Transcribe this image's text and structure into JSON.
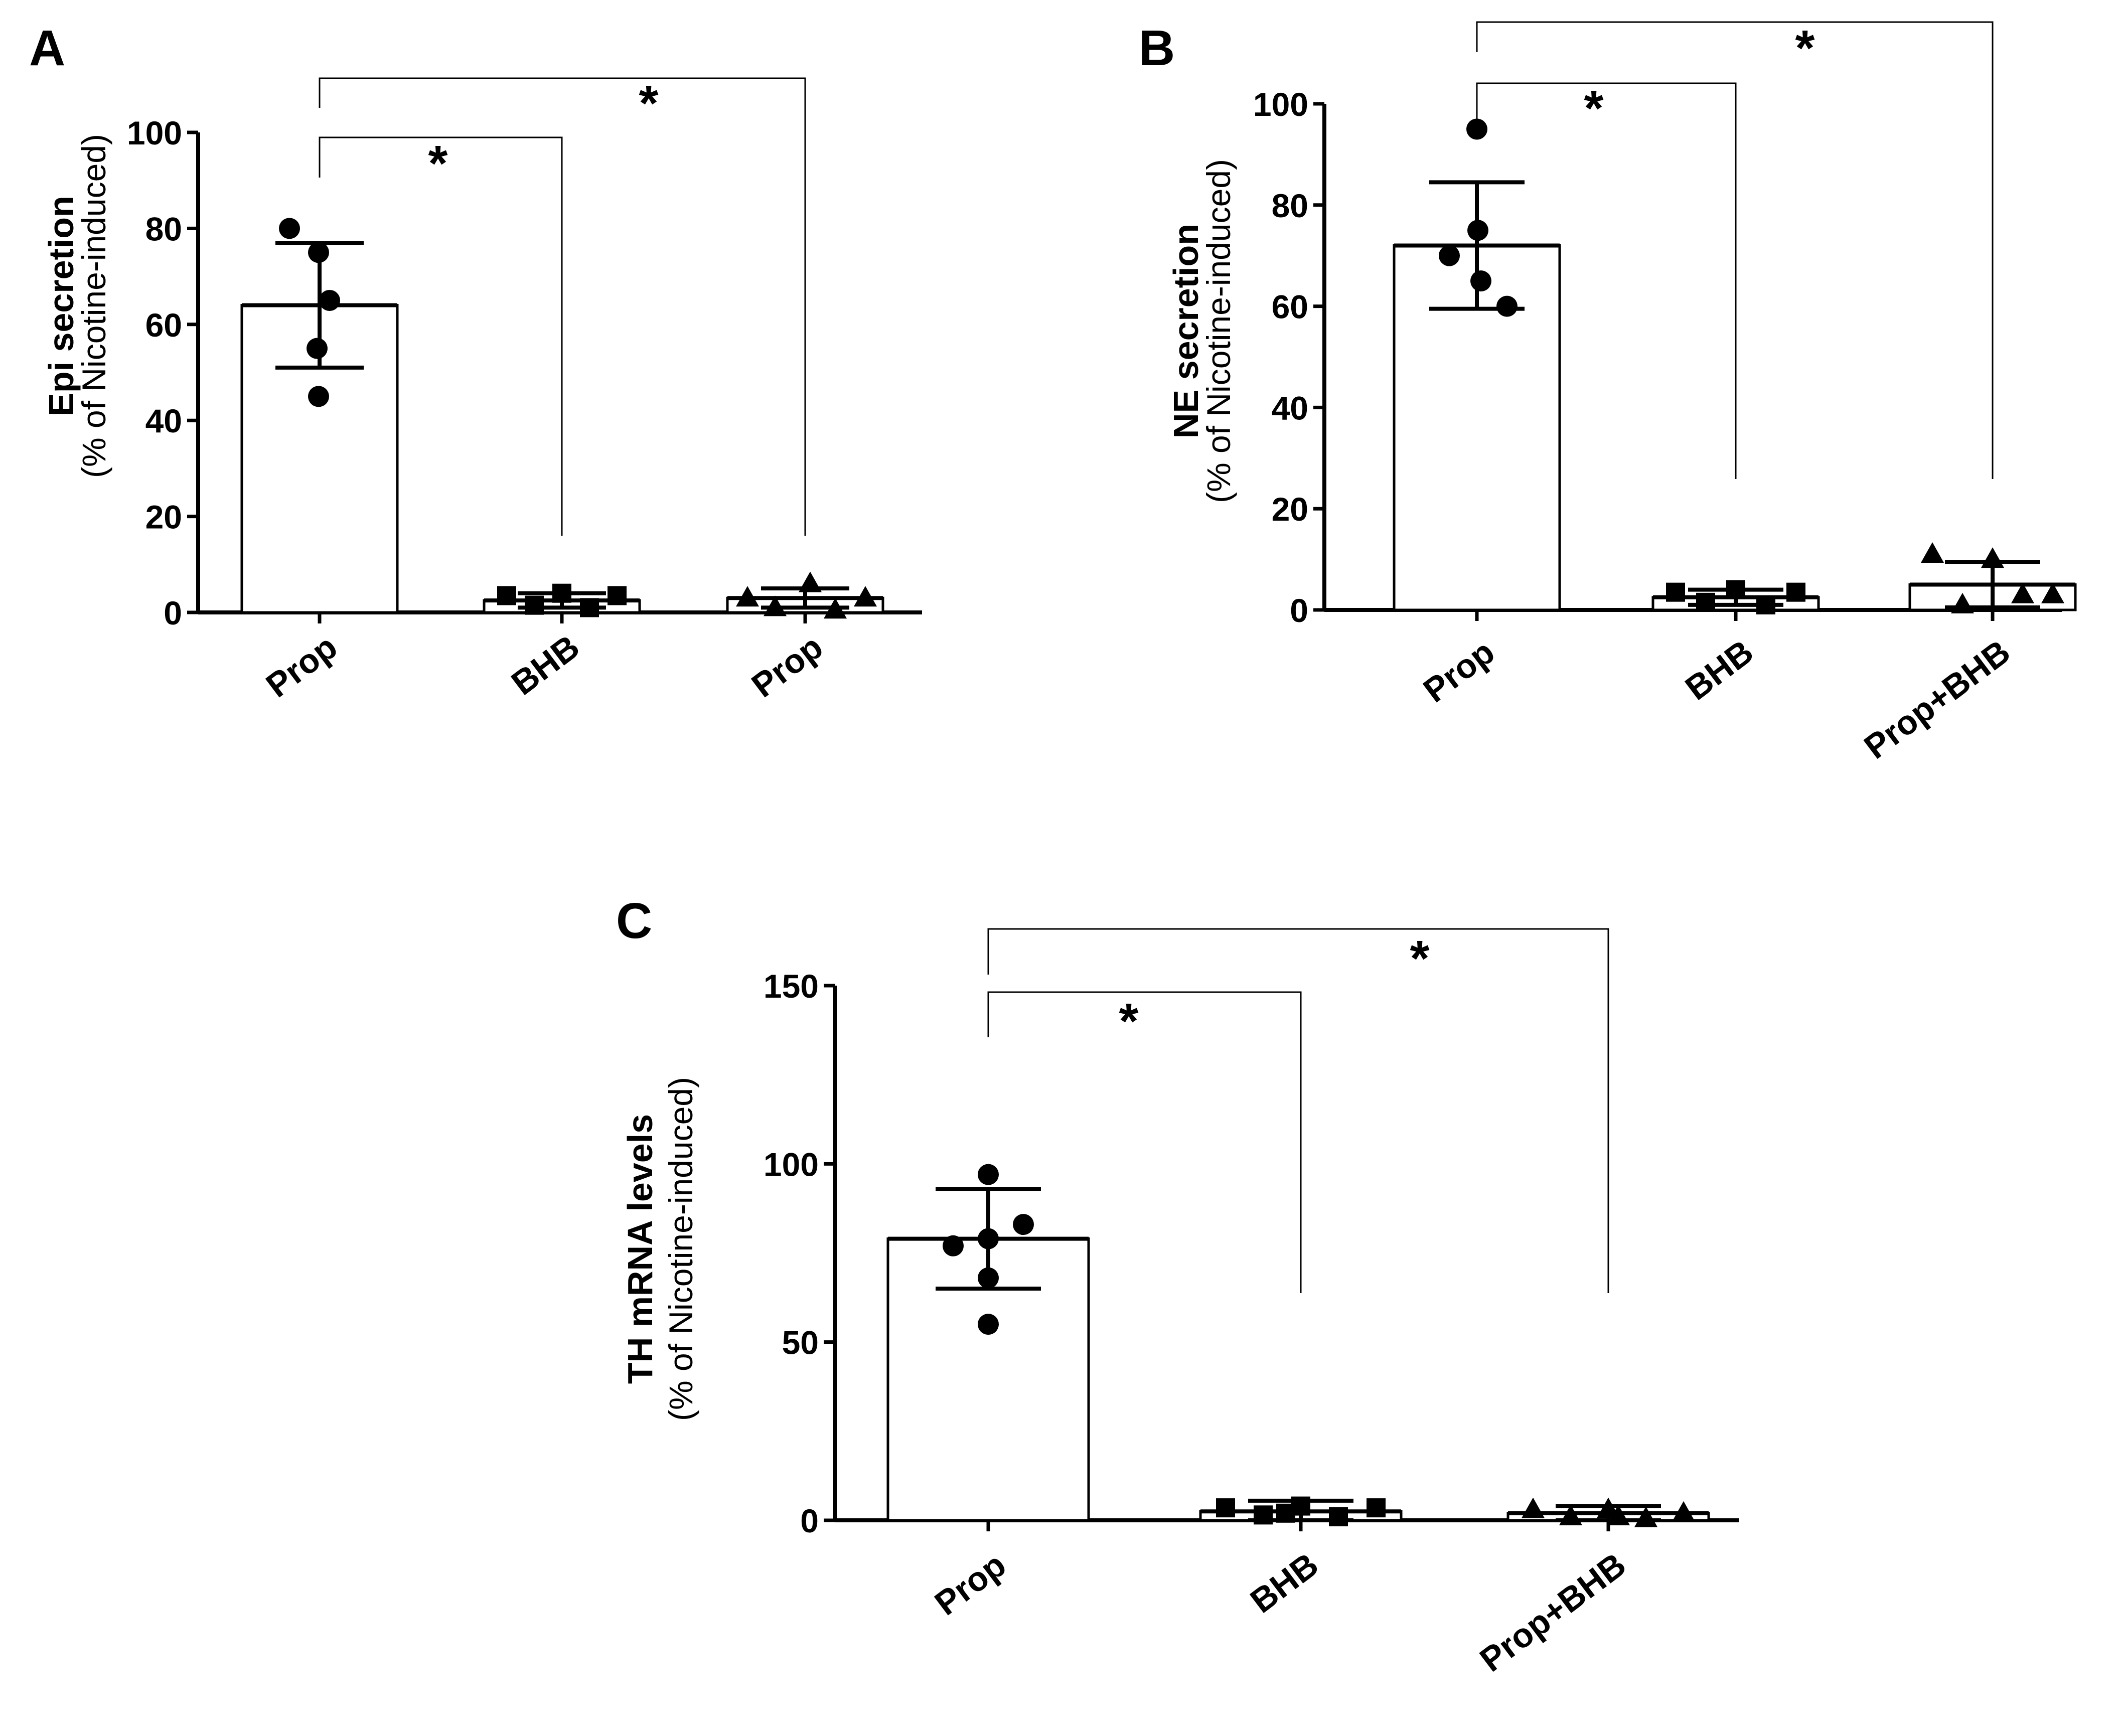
{
  "figure": {
    "background": "#ffffff",
    "ink": "#000000"
  },
  "chart_data": [
    {
      "panel": "A",
      "type": "bar",
      "title": "",
      "ylabel": "Epi secretion",
      "ylabel_sub": "(% of Nicotine-induced)",
      "xlabel": "",
      "ylim": [
        0,
        100
      ],
      "yticks": [
        0,
        20,
        40,
        60,
        80,
        100
      ],
      "categories": [
        "Prop",
        "BHB",
        "Prop"
      ],
      "means": [
        64,
        2.5,
        3
      ],
      "sd": [
        13,
        1.5,
        2
      ],
      "points": [
        [
          80,
          75,
          65,
          55,
          45
        ],
        [
          3.5,
          1.5,
          4,
          1,
          3.5
        ],
        [
          3,
          1,
          6,
          0.5,
          3
        ]
      ],
      "markers": [
        "circle",
        "square",
        "triangle"
      ],
      "significance": [
        {
          "from": 0,
          "to": 1,
          "label": "*"
        },
        {
          "from": 0,
          "to": 2,
          "label": "*"
        }
      ]
    },
    {
      "panel": "B",
      "type": "bar",
      "title": "",
      "ylabel": "NE secretion",
      "ylabel_sub": "(% of Nicotine-induced)",
      "xlabel": "",
      "ylim": [
        0,
        100
      ],
      "yticks": [
        0,
        20,
        40,
        60,
        80,
        100
      ],
      "categories": [
        "Prop",
        "BHB",
        "Prop+BHB"
      ],
      "means": [
        72,
        2.5,
        5
      ],
      "sd": [
        12.5,
        1.5,
        4.5
      ],
      "points": [
        [
          95,
          75,
          70,
          65,
          60
        ],
        [
          3.5,
          1.5,
          4,
          1,
          3.5
        ],
        [
          11,
          1,
          10,
          3,
          3
        ]
      ],
      "markers": [
        "circle",
        "square",
        "triangle"
      ],
      "significance": [
        {
          "from": 0,
          "to": 1,
          "label": "*"
        },
        {
          "from": 0,
          "to": 2,
          "label": "*"
        }
      ]
    },
    {
      "panel": "C",
      "type": "bar",
      "title": "",
      "ylabel": "TH mRNA levels",
      "ylabel_sub": "(% of Nicotine-induced)",
      "xlabel": "",
      "ylim": [
        0,
        150
      ],
      "yticks": [
        0,
        50,
        100,
        150
      ],
      "categories": [
        "Prop",
        "BHB",
        "Prop+BHB"
      ],
      "means": [
        79,
        2.5,
        2
      ],
      "sd": [
        14,
        3,
        2
      ],
      "points": [
        [
          97,
          83,
          79,
          77,
          68,
          55
        ],
        [
          3.5,
          1.5,
          4,
          1,
          3.5,
          2
        ],
        [
          3,
          1,
          3,
          0.5,
          2,
          1
        ]
      ],
      "markers": [
        "circle",
        "square",
        "triangle"
      ],
      "significance": [
        {
          "from": 0,
          "to": 1,
          "label": "*"
        },
        {
          "from": 0,
          "to": 2,
          "label": "*"
        }
      ]
    }
  ]
}
